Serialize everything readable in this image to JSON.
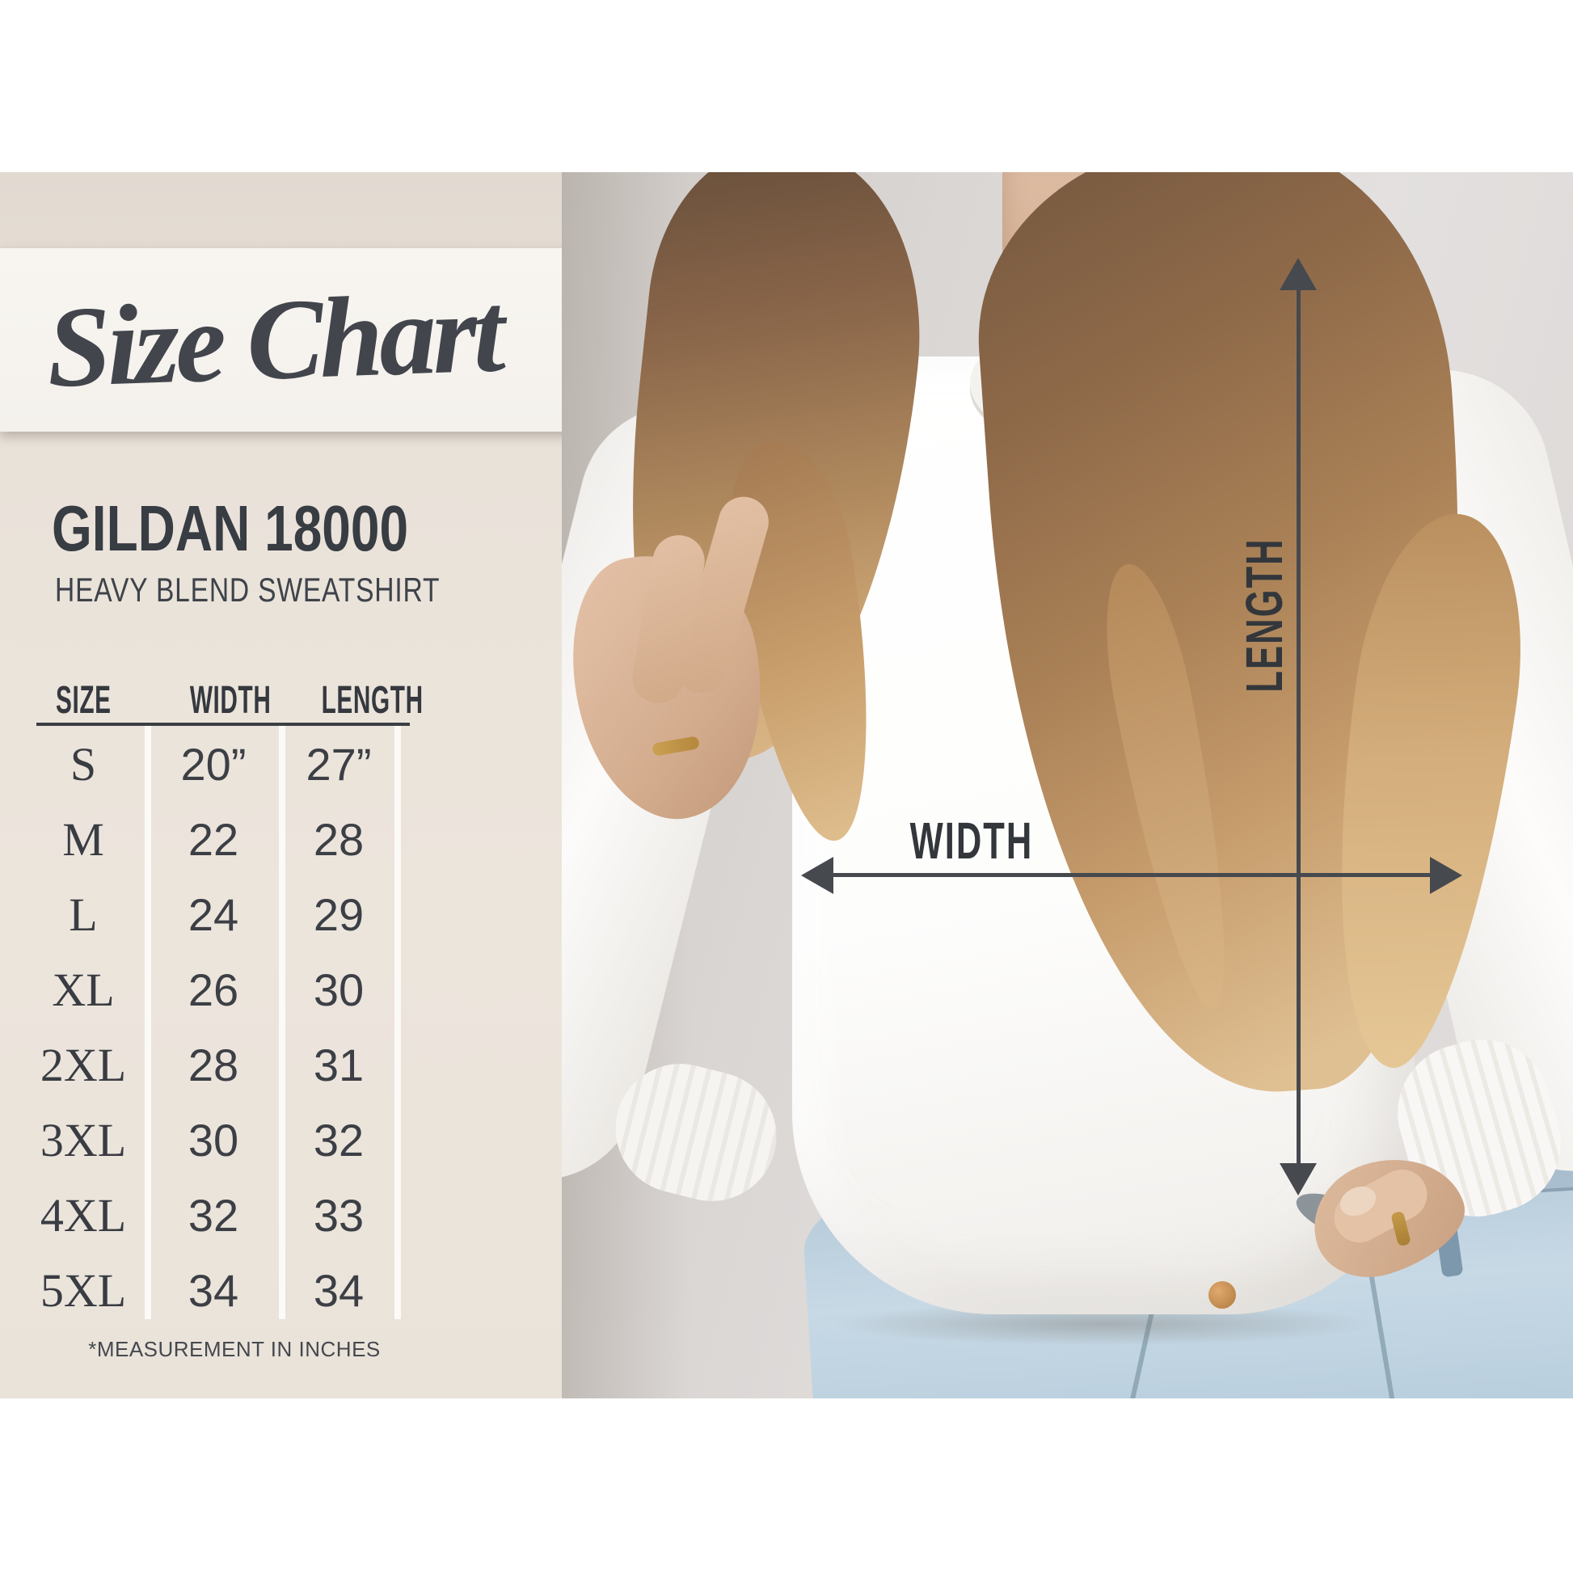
{
  "banner": {
    "title": "Size Chart"
  },
  "product": {
    "name": "GILDAN 18000",
    "subtitle": "HEAVY BLEND SWEATSHIRT"
  },
  "size_table": {
    "headers": {
      "size": "SIZE",
      "width": "WIDTH",
      "length": "LENGTH"
    },
    "rows": [
      {
        "size": "S",
        "width": "20”",
        "length": "27”"
      },
      {
        "size": "M",
        "width": "22",
        "length": "28"
      },
      {
        "size": "L",
        "width": "24",
        "length": "29"
      },
      {
        "size": "XL",
        "width": "26",
        "length": "30"
      },
      {
        "size": "2XL",
        "width": "28",
        "length": "31"
      },
      {
        "size": "3XL",
        "width": "30",
        "length": "32"
      },
      {
        "size": "4XL",
        "width": "32",
        "length": "33"
      },
      {
        "size": "5XL",
        "width": "34",
        "length": "34"
      }
    ],
    "footnote": "*MEASUREMENT IN INCHES"
  },
  "diagram": {
    "length_label": "LENGTH",
    "width_label": "WIDTH"
  },
  "colors": {
    "panel_beige": "#e9e2d9",
    "banner_cream": "#f6f3ef",
    "ink_dark": "#3b3e44",
    "arrow_gray": "#46494e",
    "wall_gray": "#dbd7d5",
    "jeans_blue": "#bfd3e1",
    "hair_blonde": "#c79d6d",
    "skin": "#d4ad8f"
  }
}
